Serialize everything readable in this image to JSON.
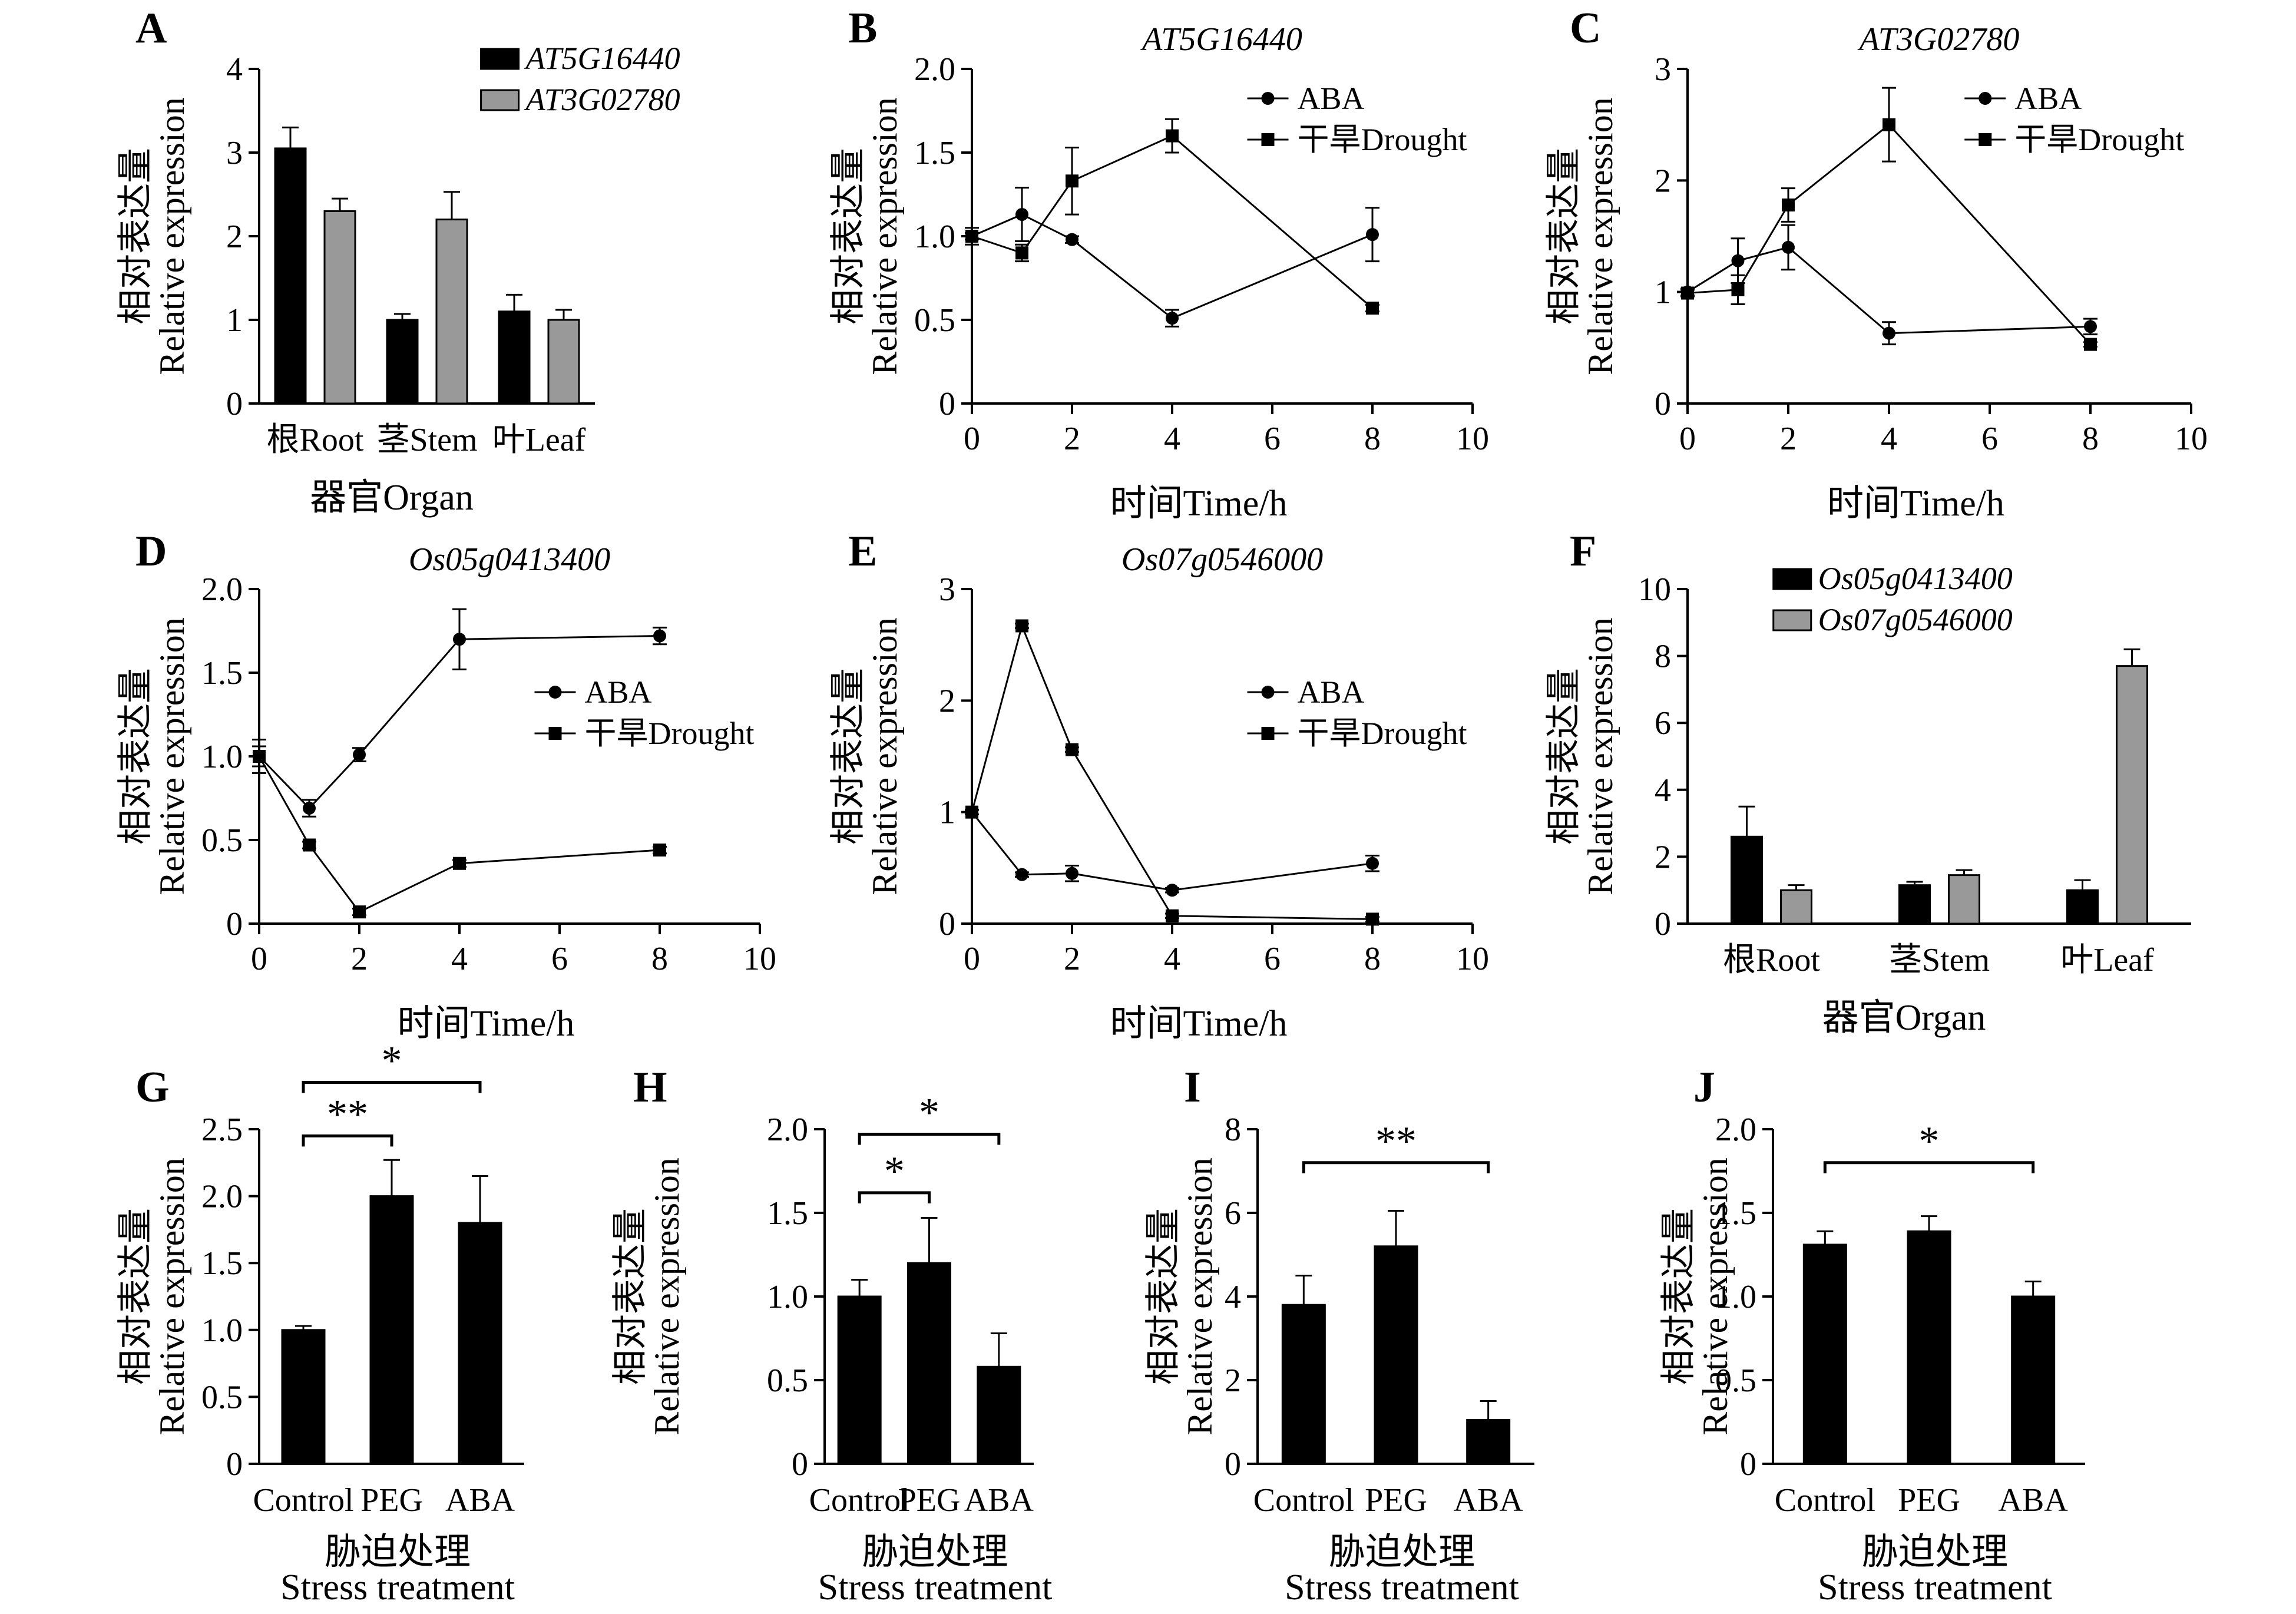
{
  "chart_data": [
    {
      "panel": "A",
      "type": "bar",
      "title": "",
      "xlabel": "器官Organ",
      "ylabel": [
        "相对表达量",
        "Relative expression"
      ],
      "ylim": [
        0,
        4
      ],
      "yticks": [
        0,
        1,
        2,
        3,
        4
      ],
      "categories": [
        "根Root",
        "茎Stem",
        "叶Leaf"
      ],
      "legend_position": "top-right",
      "series": [
        {
          "name": "AT5G16440",
          "color": "#000000",
          "values": [
            3.05,
            1.0,
            1.1
          ],
          "errors": [
            0.25,
            0.07,
            0.2
          ]
        },
        {
          "name": "AT3G02780",
          "color": "#999999",
          "values": [
            2.3,
            2.2,
            1.0
          ],
          "errors": [
            0.15,
            0.33,
            0.12
          ]
        }
      ]
    },
    {
      "panel": "B",
      "type": "line",
      "title": "AT5G16440",
      "xlabel": "时间Time/h",
      "ylabel": [
        "相对表达量",
        "Relative expression"
      ],
      "xlim": [
        0,
        10
      ],
      "xticks": [
        0,
        2,
        4,
        6,
        8,
        10
      ],
      "ylim": [
        0,
        2.0
      ],
      "yticks": [
        "0",
        "0.5",
        "1.0",
        "1.5",
        "2.0"
      ],
      "legend_position": "top-right",
      "series": [
        {
          "name": "ABA",
          "marker": "circle",
          "x": [
            0,
            1,
            2,
            4,
            8
          ],
          "y": [
            1.0,
            1.13,
            0.98,
            0.51,
            1.01
          ],
          "errors": [
            0.05,
            0.16,
            0.02,
            0.05,
            0.16
          ]
        },
        {
          "name": "干旱Drought",
          "marker": "square",
          "x": [
            0,
            1,
            2,
            4,
            8
          ],
          "y": [
            1.0,
            0.9,
            1.33,
            1.6,
            0.57
          ],
          "errors": [
            0.02,
            0.05,
            0.2,
            0.1,
            0.02
          ]
        }
      ]
    },
    {
      "panel": "C",
      "type": "line",
      "title": "AT3G02780",
      "xlabel": "时间Time/h",
      "ylabel": [
        "相对表达量",
        "Relative expression"
      ],
      "xlim": [
        0,
        10
      ],
      "xticks": [
        0,
        2,
        4,
        6,
        8,
        10
      ],
      "ylim": [
        0,
        3
      ],
      "yticks": [
        "0",
        "1",
        "2",
        "3"
      ],
      "legend_position": "top-right",
      "series": [
        {
          "name": "ABA",
          "marker": "circle",
          "x": [
            0,
            1,
            2,
            4,
            8
          ],
          "y": [
            1.0,
            1.28,
            1.4,
            0.63,
            0.69
          ],
          "errors": [
            0.03,
            0.2,
            0.2,
            0.1,
            0.07
          ]
        },
        {
          "name": "干旱Drought",
          "marker": "square",
          "x": [
            0,
            1,
            2,
            4,
            8
          ],
          "y": [
            0.99,
            1.02,
            1.78,
            2.5,
            0.53
          ],
          "errors": [
            0.03,
            0.13,
            0.15,
            0.33,
            0.02
          ]
        }
      ]
    },
    {
      "panel": "D",
      "type": "line",
      "title": "Os05g0413400",
      "xlabel": "时间Time/h",
      "ylabel": [
        "相对表达量",
        "Relative expression"
      ],
      "xlim": [
        0,
        10
      ],
      "xticks": [
        0,
        2,
        4,
        6,
        8,
        10
      ],
      "ylim": [
        0,
        2.0
      ],
      "yticks": [
        "0",
        "0.5",
        "1.0",
        "1.5",
        "2.0"
      ],
      "legend_position": "center-right",
      "series": [
        {
          "name": "ABA",
          "marker": "circle",
          "x": [
            0,
            1,
            2,
            4,
            8
          ],
          "y": [
            1.0,
            0.69,
            1.01,
            1.7,
            1.72
          ],
          "errors": [
            0.1,
            0.05,
            0.04,
            0.18,
            0.05
          ]
        },
        {
          "name": "干旱Drought",
          "marker": "square",
          "x": [
            0,
            1,
            2,
            4,
            8
          ],
          "y": [
            1.0,
            0.47,
            0.07,
            0.36,
            0.44
          ],
          "errors": [
            0.06,
            0.02,
            0.02,
            0.02,
            0.02
          ]
        }
      ]
    },
    {
      "panel": "E",
      "type": "line",
      "title": "Os07g0546000",
      "xlabel": "时间Time/h",
      "ylabel": [
        "相对表达量",
        "Relative expression"
      ],
      "xlim": [
        0,
        10
      ],
      "xticks": [
        0,
        2,
        4,
        6,
        8,
        10
      ],
      "ylim": [
        0,
        3
      ],
      "yticks": [
        "0",
        "1",
        "2",
        "3"
      ],
      "legend_position": "center-right",
      "series": [
        {
          "name": "ABA",
          "marker": "circle",
          "x": [
            0,
            1,
            2,
            4,
            8
          ],
          "y": [
            1.0,
            0.44,
            0.45,
            0.3,
            0.54
          ],
          "errors": [
            0.02,
            0.02,
            0.07,
            0.02,
            0.07
          ]
        },
        {
          "name": "干旱Drought",
          "marker": "square",
          "x": [
            0,
            1,
            2,
            4,
            8
          ],
          "y": [
            1.0,
            2.67,
            1.56,
            0.07,
            0.04
          ],
          "errors": [
            0.02,
            0.02,
            0.02,
            0.02,
            0.02
          ]
        }
      ]
    },
    {
      "panel": "F",
      "type": "bar",
      "title": "",
      "xlabel": "器官Organ",
      "ylabel": [
        "相对表达量",
        "Relative expression"
      ],
      "ylim": [
        0,
        10
      ],
      "yticks": [
        0,
        2,
        4,
        6,
        8,
        10
      ],
      "categories": [
        "根Root",
        "茎Stem",
        "叶Leaf"
      ],
      "legend_position": "top",
      "series": [
        {
          "name": "Os05g0413400",
          "color": "#000000",
          "values": [
            2.6,
            1.15,
            1.0
          ],
          "errors": [
            0.9,
            0.1,
            0.3
          ]
        },
        {
          "name": "Os07g0546000",
          "color": "#999999",
          "values": [
            1.0,
            1.45,
            7.7
          ],
          "errors": [
            0.15,
            0.15,
            0.5
          ]
        }
      ]
    },
    {
      "panel": "G",
      "type": "bar",
      "title": "",
      "xlabel": [
        "胁迫处理",
        "Stress treatment"
      ],
      "ylabel": [
        "相对表达量",
        "Relative expression"
      ],
      "ylim": [
        0,
        2.5
      ],
      "yticks": [
        "0",
        "0.5",
        "1.0",
        "1.5",
        "2.0",
        "2.5"
      ],
      "categories": [
        "Control",
        "PEG",
        "ABA"
      ],
      "series": [
        {
          "values": [
            1.0,
            2.0,
            1.8
          ],
          "errors": [
            0.03,
            0.27,
            0.35
          ],
          "color": "#000000"
        }
      ],
      "significance": [
        {
          "from": 0,
          "to": 1,
          "label": "**",
          "level": 2.45
        },
        {
          "from": 0,
          "to": 2,
          "label": "*",
          "level": 2.85
        }
      ]
    },
    {
      "panel": "H",
      "type": "bar",
      "title": "",
      "xlabel": [
        "胁迫处理",
        "Stress treatment"
      ],
      "ylabel": [
        "相对表达量",
        "Relative expression"
      ],
      "ylim": [
        0,
        2.0
      ],
      "yticks": [
        "0",
        "0.5",
        "1.0",
        "1.5",
        "2.0"
      ],
      "categories": [
        "Control",
        "PEG",
        "ABA"
      ],
      "series": [
        {
          "values": [
            1.0,
            1.2,
            0.58
          ],
          "errors": [
            0.1,
            0.27,
            0.2
          ],
          "color": "#000000"
        }
      ],
      "significance": [
        {
          "from": 0,
          "to": 1,
          "label": "*",
          "level": 1.62
        },
        {
          "from": 0,
          "to": 2,
          "label": "*",
          "level": 1.97
        }
      ]
    },
    {
      "panel": "I",
      "type": "bar",
      "title": "",
      "xlabel": [
        "胁迫处理",
        "Stress treatment"
      ],
      "ylabel": [
        "相对表达量",
        "Relative expression"
      ],
      "ylim": [
        0,
        8
      ],
      "yticks": [
        "0",
        "2",
        "4",
        "6",
        "8"
      ],
      "categories": [
        "Control",
        "PEG",
        "ABA"
      ],
      "series": [
        {
          "values": [
            3.8,
            5.2,
            1.05
          ],
          "errors": [
            0.7,
            0.85,
            0.45
          ],
          "color": "#000000"
        }
      ],
      "significance": [
        {
          "from": 0,
          "to": 2,
          "label": "**",
          "level": 7.2
        }
      ]
    },
    {
      "panel": "J",
      "type": "bar",
      "title": "",
      "xlabel": [
        "胁迫处理",
        "Stress treatment"
      ],
      "ylabel": [
        "相对表达量",
        "Relative expression"
      ],
      "ylim": [
        0,
        2.0
      ],
      "yticks": [
        "0",
        "0.5",
        "1.0",
        "1.5",
        "2.0"
      ],
      "categories": [
        "Control",
        "PEG",
        "ABA"
      ],
      "series": [
        {
          "values": [
            1.31,
            1.39,
            1.0
          ],
          "errors": [
            0.08,
            0.09,
            0.09
          ],
          "color": "#000000"
        }
      ],
      "significance": [
        {
          "from": 0,
          "to": 2,
          "label": "*",
          "level": 1.8
        }
      ]
    }
  ]
}
